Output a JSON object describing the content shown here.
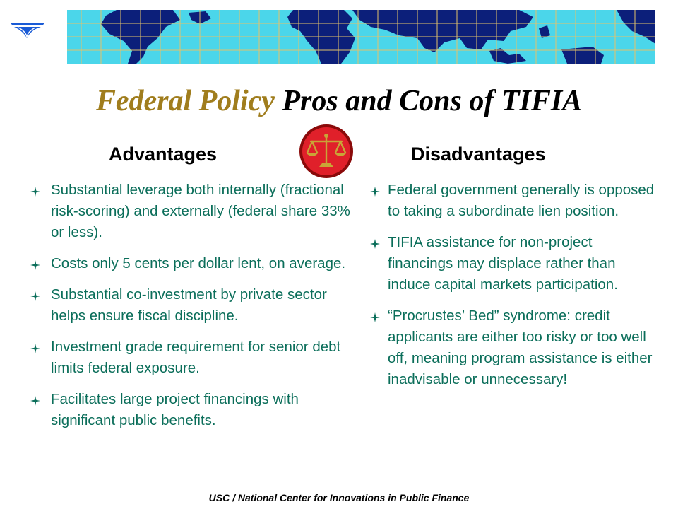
{
  "title": {
    "accent": "Federal Policy",
    "rest": " Pros and Cons of TIFIA"
  },
  "colors": {
    "accent": "#a07d1d",
    "body_text": "#0b6e5a",
    "map_water": "#4bd6ea",
    "map_land": "#0c1f7a"
  },
  "icons": {
    "logo": "wing-logo-icon",
    "scales": "balance-scales-icon",
    "bullet": "four-point-star-icon"
  },
  "advantages": {
    "heading": "Advantages",
    "items": [
      "Substantial leverage both internally (fractional risk-scoring) and externally (federal share 33% or less).",
      "Costs only 5 cents per dollar lent, on average.",
      "Substantial co-investment by private sector helps ensure fiscal discipline.",
      "Investment grade requirement for senior debt limits federal exposure.",
      "Facilitates large project financings with significant public benefits."
    ]
  },
  "disadvantages": {
    "heading": "Disadvantages",
    "items": [
      "Federal government generally is opposed to taking a subordinate lien position.",
      "TIFIA assistance for non-project financings may displace rather than induce capital markets participation.",
      "“Procrustes’ Bed” syndrome: credit applicants are either too risky or too well off, meaning program assistance is either inadvisable or unnecessary!"
    ]
  },
  "footer": "USC / National Center for Innovations in Public Finance"
}
